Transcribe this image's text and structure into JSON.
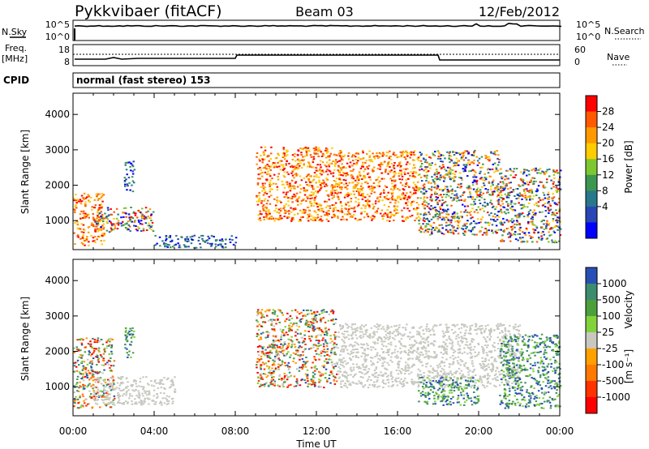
{
  "header": {
    "station": "Pykkvibaer (fitACF)",
    "beam": "Beam 03",
    "date": "12/Feb/2012",
    "cpid_label": "CPID",
    "cpid_text": "normal (fast stereo) 153"
  },
  "top_panels": {
    "nsky_label": "N.Sky",
    "nsky_ticks": [
      "10^5",
      "10^0"
    ],
    "nsearch_label": "N.Search",
    "nsearch_ticks": [
      "10^5",
      "10^0"
    ],
    "freq_label": "Freq.",
    "freq_unit": "[MHz]",
    "freq_ticks": [
      "18",
      "8"
    ],
    "nave_label": "Nave",
    "nave_ticks": [
      "60",
      "0"
    ]
  },
  "legend_power": {
    "label": "Power [dB]",
    "ticks": [
      "28",
      "24",
      "20",
      "16",
      "12",
      "8",
      "4"
    ],
    "colors": [
      "#ff0000",
      "#ff5a00",
      "#ff9900",
      "#ffcc00",
      "#7dc832",
      "#3c9650",
      "#28788c",
      "#2846b4",
      "#0000ff"
    ]
  },
  "legend_velocity": {
    "label": "Velocity",
    "unit": "[m s⁻¹]",
    "ticks": [
      "1000",
      "500",
      "100",
      "25",
      "-25",
      "-100",
      "-500",
      "-1000"
    ],
    "colors": [
      "#2850b4",
      "#3c8c6e",
      "#4ba03c",
      "#82d23c",
      "#c8c8c0",
      "#ffa000",
      "#ff7800",
      "#ff3200",
      "#ff0000"
    ]
  },
  "chart_data": [
    {
      "type": "heatmap",
      "title": "Power",
      "xlabel": "Time UT",
      "ylabel": "Slant Range [km]",
      "x_tick_labels": [
        "00:00",
        "04:00",
        "08:00",
        "12:00",
        "16:00",
        "20:00",
        "00:00"
      ],
      "x_range_hours": [
        0,
        24
      ],
      "y_tick_labels": [
        "1000",
        "2000",
        "3000",
        "4000"
      ],
      "ylim": [
        180,
        4600
      ],
      "colorbar": "Power [dB]",
      "scatter_regions": [
        {
          "t": [
            0.0,
            1.5
          ],
          "r": [
            300,
            1800
          ],
          "level": "high"
        },
        {
          "t": [
            1.0,
            4.0
          ],
          "r": [
            700,
            1400
          ],
          "level": "mixed"
        },
        {
          "t": [
            2.5,
            3.0
          ],
          "r": [
            1800,
            2700
          ],
          "level": "low"
        },
        {
          "t": [
            4.0,
            8.0
          ],
          "r": [
            250,
            600
          ],
          "level": "low"
        },
        {
          "t": [
            9.0,
            13.0
          ],
          "r": [
            1000,
            3100
          ],
          "level": "high"
        },
        {
          "t": [
            13.0,
            17.0
          ],
          "r": [
            1000,
            3000
          ],
          "level": "high"
        },
        {
          "t": [
            17.0,
            21.0
          ],
          "r": [
            600,
            3000
          ],
          "level": "mixed"
        },
        {
          "t": [
            21.0,
            24.0
          ],
          "r": [
            400,
            2500
          ],
          "level": "mixed"
        }
      ]
    },
    {
      "type": "heatmap",
      "title": "Velocity",
      "xlabel": "Time UT",
      "ylabel": "Slant Range [km]",
      "x_tick_labels": [
        "00:00",
        "04:00",
        "08:00",
        "12:00",
        "16:00",
        "20:00",
        "00:00"
      ],
      "x_range_hours": [
        0,
        24
      ],
      "y_tick_labels": [
        "1000",
        "2000",
        "3000",
        "4000"
      ],
      "ylim": [
        180,
        4600
      ],
      "colorbar": "Velocity [m s⁻¹]",
      "scatter_regions": [
        {
          "t": [
            0.0,
            2.0
          ],
          "r": [
            400,
            2400
          ],
          "level": "mixed"
        },
        {
          "t": [
            1.0,
            5.0
          ],
          "r": [
            500,
            1300
          ],
          "level": "ground"
        },
        {
          "t": [
            2.5,
            3.0
          ],
          "r": [
            1800,
            2700
          ],
          "level": "positive"
        },
        {
          "t": [
            9.0,
            13.0
          ],
          "r": [
            1000,
            3200
          ],
          "level": "mixed"
        },
        {
          "t": [
            13.0,
            22.0
          ],
          "r": [
            1000,
            2800
          ],
          "level": "ground"
        },
        {
          "t": [
            17.0,
            20.0
          ],
          "r": [
            500,
            1300
          ],
          "level": "positive"
        },
        {
          "t": [
            21.0,
            24.0
          ],
          "r": [
            400,
            2500
          ],
          "level": "positive"
        }
      ]
    }
  ]
}
